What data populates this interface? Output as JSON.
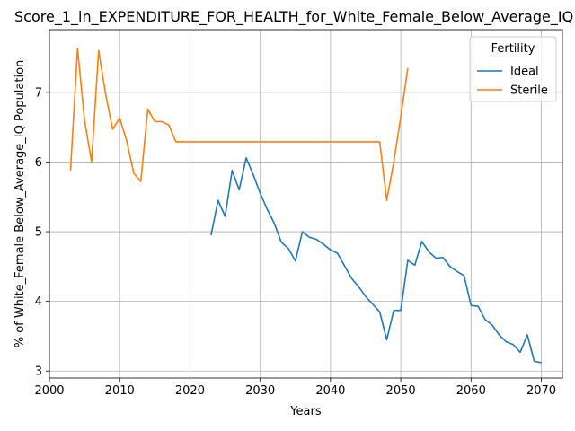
{
  "chart_data": {
    "type": "line",
    "title": "Score_1_in_EXPENDITURE_FOR_HEALTH_for_White_Female_Below_Average_IQ",
    "xlabel": "Years",
    "ylabel": "% of White_Female Below_Average_IQ Population",
    "xlim": [
      2000,
      2073
    ],
    "ylim": [
      2.9,
      7.9
    ],
    "xticks": [
      2000,
      2010,
      2020,
      2030,
      2040,
      2050,
      2060,
      2070
    ],
    "yticks": [
      3,
      4,
      5,
      6,
      7
    ],
    "grid": true,
    "legend": {
      "title": "Fertility",
      "position": "top-right"
    },
    "series": [
      {
        "name": "Ideal",
        "color": "#1f77b4",
        "points": [
          [
            2023,
            4.95
          ],
          [
            2024,
            5.45
          ],
          [
            2025,
            5.22
          ],
          [
            2026,
            5.88
          ],
          [
            2027,
            5.6
          ],
          [
            2028,
            6.06
          ],
          [
            2029,
            5.82
          ],
          [
            2030,
            5.55
          ],
          [
            2031,
            5.32
          ],
          [
            2032,
            5.12
          ],
          [
            2033,
            4.85
          ],
          [
            2034,
            4.76
          ],
          [
            2035,
            4.58
          ],
          [
            2036,
            5.0
          ],
          [
            2037,
            4.92
          ],
          [
            2038,
            4.89
          ],
          [
            2039,
            4.82
          ],
          [
            2040,
            4.74
          ],
          [
            2041,
            4.69
          ],
          [
            2042,
            4.51
          ],
          [
            2043,
            4.33
          ],
          [
            2044,
            4.21
          ],
          [
            2045,
            4.07
          ],
          [
            2046,
            3.96
          ],
          [
            2047,
            3.85
          ],
          [
            2048,
            3.45
          ],
          [
            2049,
            3.87
          ],
          [
            2050,
            3.87
          ],
          [
            2051,
            4.59
          ],
          [
            2052,
            4.52
          ],
          [
            2053,
            4.86
          ],
          [
            2054,
            4.71
          ],
          [
            2055,
            4.62
          ],
          [
            2056,
            4.63
          ],
          [
            2057,
            4.5
          ],
          [
            2058,
            4.43
          ],
          [
            2059,
            4.37
          ],
          [
            2060,
            3.94
          ],
          [
            2061,
            3.93
          ],
          [
            2062,
            3.74
          ],
          [
            2063,
            3.66
          ],
          [
            2064,
            3.52
          ],
          [
            2065,
            3.42
          ],
          [
            2066,
            3.38
          ],
          [
            2067,
            3.27
          ],
          [
            2068,
            3.52
          ],
          [
            2069,
            3.14
          ],
          [
            2070,
            3.12
          ]
        ]
      },
      {
        "name": "Sterile",
        "color": "#ff7f0e",
        "points": [
          [
            2003,
            5.88
          ],
          [
            2004,
            7.63
          ],
          [
            2005,
            6.6
          ],
          [
            2006,
            6.0
          ],
          [
            2007,
            7.6
          ],
          [
            2008,
            6.97
          ],
          [
            2009,
            6.47
          ],
          [
            2010,
            6.63
          ],
          [
            2011,
            6.3
          ],
          [
            2012,
            5.84
          ],
          [
            2013,
            5.72
          ],
          [
            2014,
            6.76
          ],
          [
            2015,
            6.58
          ],
          [
            2016,
            6.58
          ],
          [
            2017,
            6.53
          ],
          [
            2018,
            6.29
          ],
          [
            2019,
            6.29
          ],
          [
            2020,
            6.29
          ],
          [
            2025,
            6.29
          ],
          [
            2030,
            6.29
          ],
          [
            2035,
            6.29
          ],
          [
            2040,
            6.29
          ],
          [
            2045,
            6.29
          ],
          [
            2047,
            6.29
          ],
          [
            2048,
            5.45
          ],
          [
            2049,
            6.0
          ],
          [
            2050,
            6.65
          ],
          [
            2051,
            7.35
          ]
        ]
      }
    ]
  }
}
